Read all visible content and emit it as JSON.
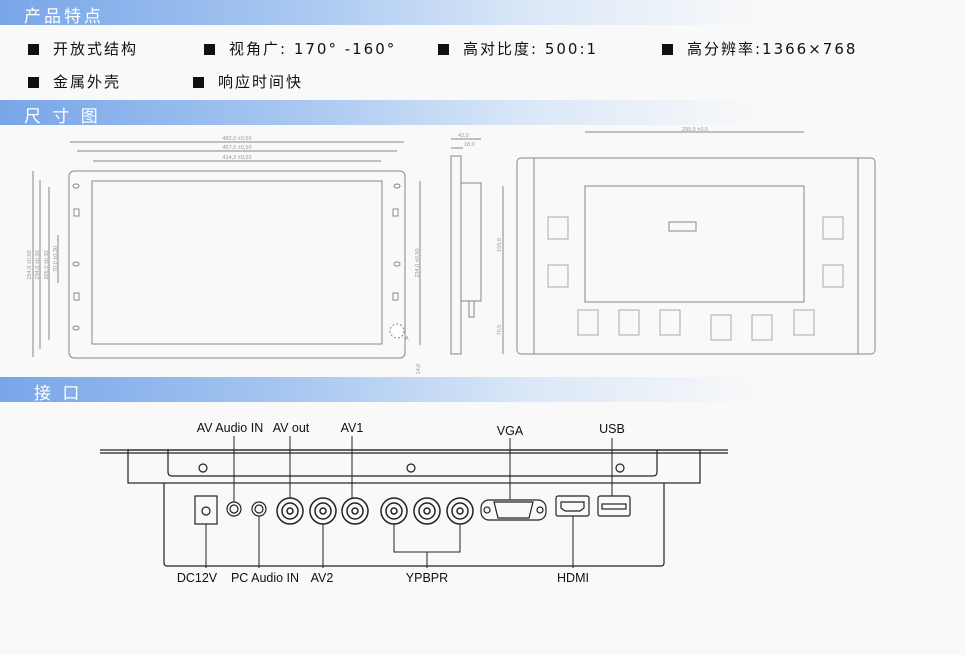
{
  "sections": {
    "features_title": "产品特点",
    "dimensions_title": "尺 寸 图",
    "interface_title": "接 口"
  },
  "features": [
    "开放式结构",
    "视角广: 170° -160°",
    "高对比度: 500:1",
    "高分辨率:1366×768",
    "金属外壳",
    "响应时间快"
  ],
  "dimensions": {
    "width_outer": "482,0 ±0,50",
    "width_mount": "457,0 ±0,50",
    "width_screen": "414,2 ±0,50",
    "height_outer": "254,0 ±0,50",
    "height_mount": "234,0 ±0,30",
    "height_hole": "205,0 ±0,30",
    "height_inner": "70,0 ±0,30",
    "height_right": "234,0 ±0,50",
    "bottom_offset": "14,0",
    "depth_total": "42,0",
    "depth_frame": "18,0",
    "back_width": "295,5 ±0,5",
    "back_height": "155,8",
    "back_bottom": "70,5",
    "detail_label": "A"
  },
  "interface": {
    "top_labels": [
      "AV Audio IN",
      "AV out",
      "AV1",
      "VGA",
      "USB"
    ],
    "bottom_labels": [
      "DC12V",
      "PC Audio IN",
      "AV2",
      "YPBPR",
      "HDMI"
    ]
  }
}
